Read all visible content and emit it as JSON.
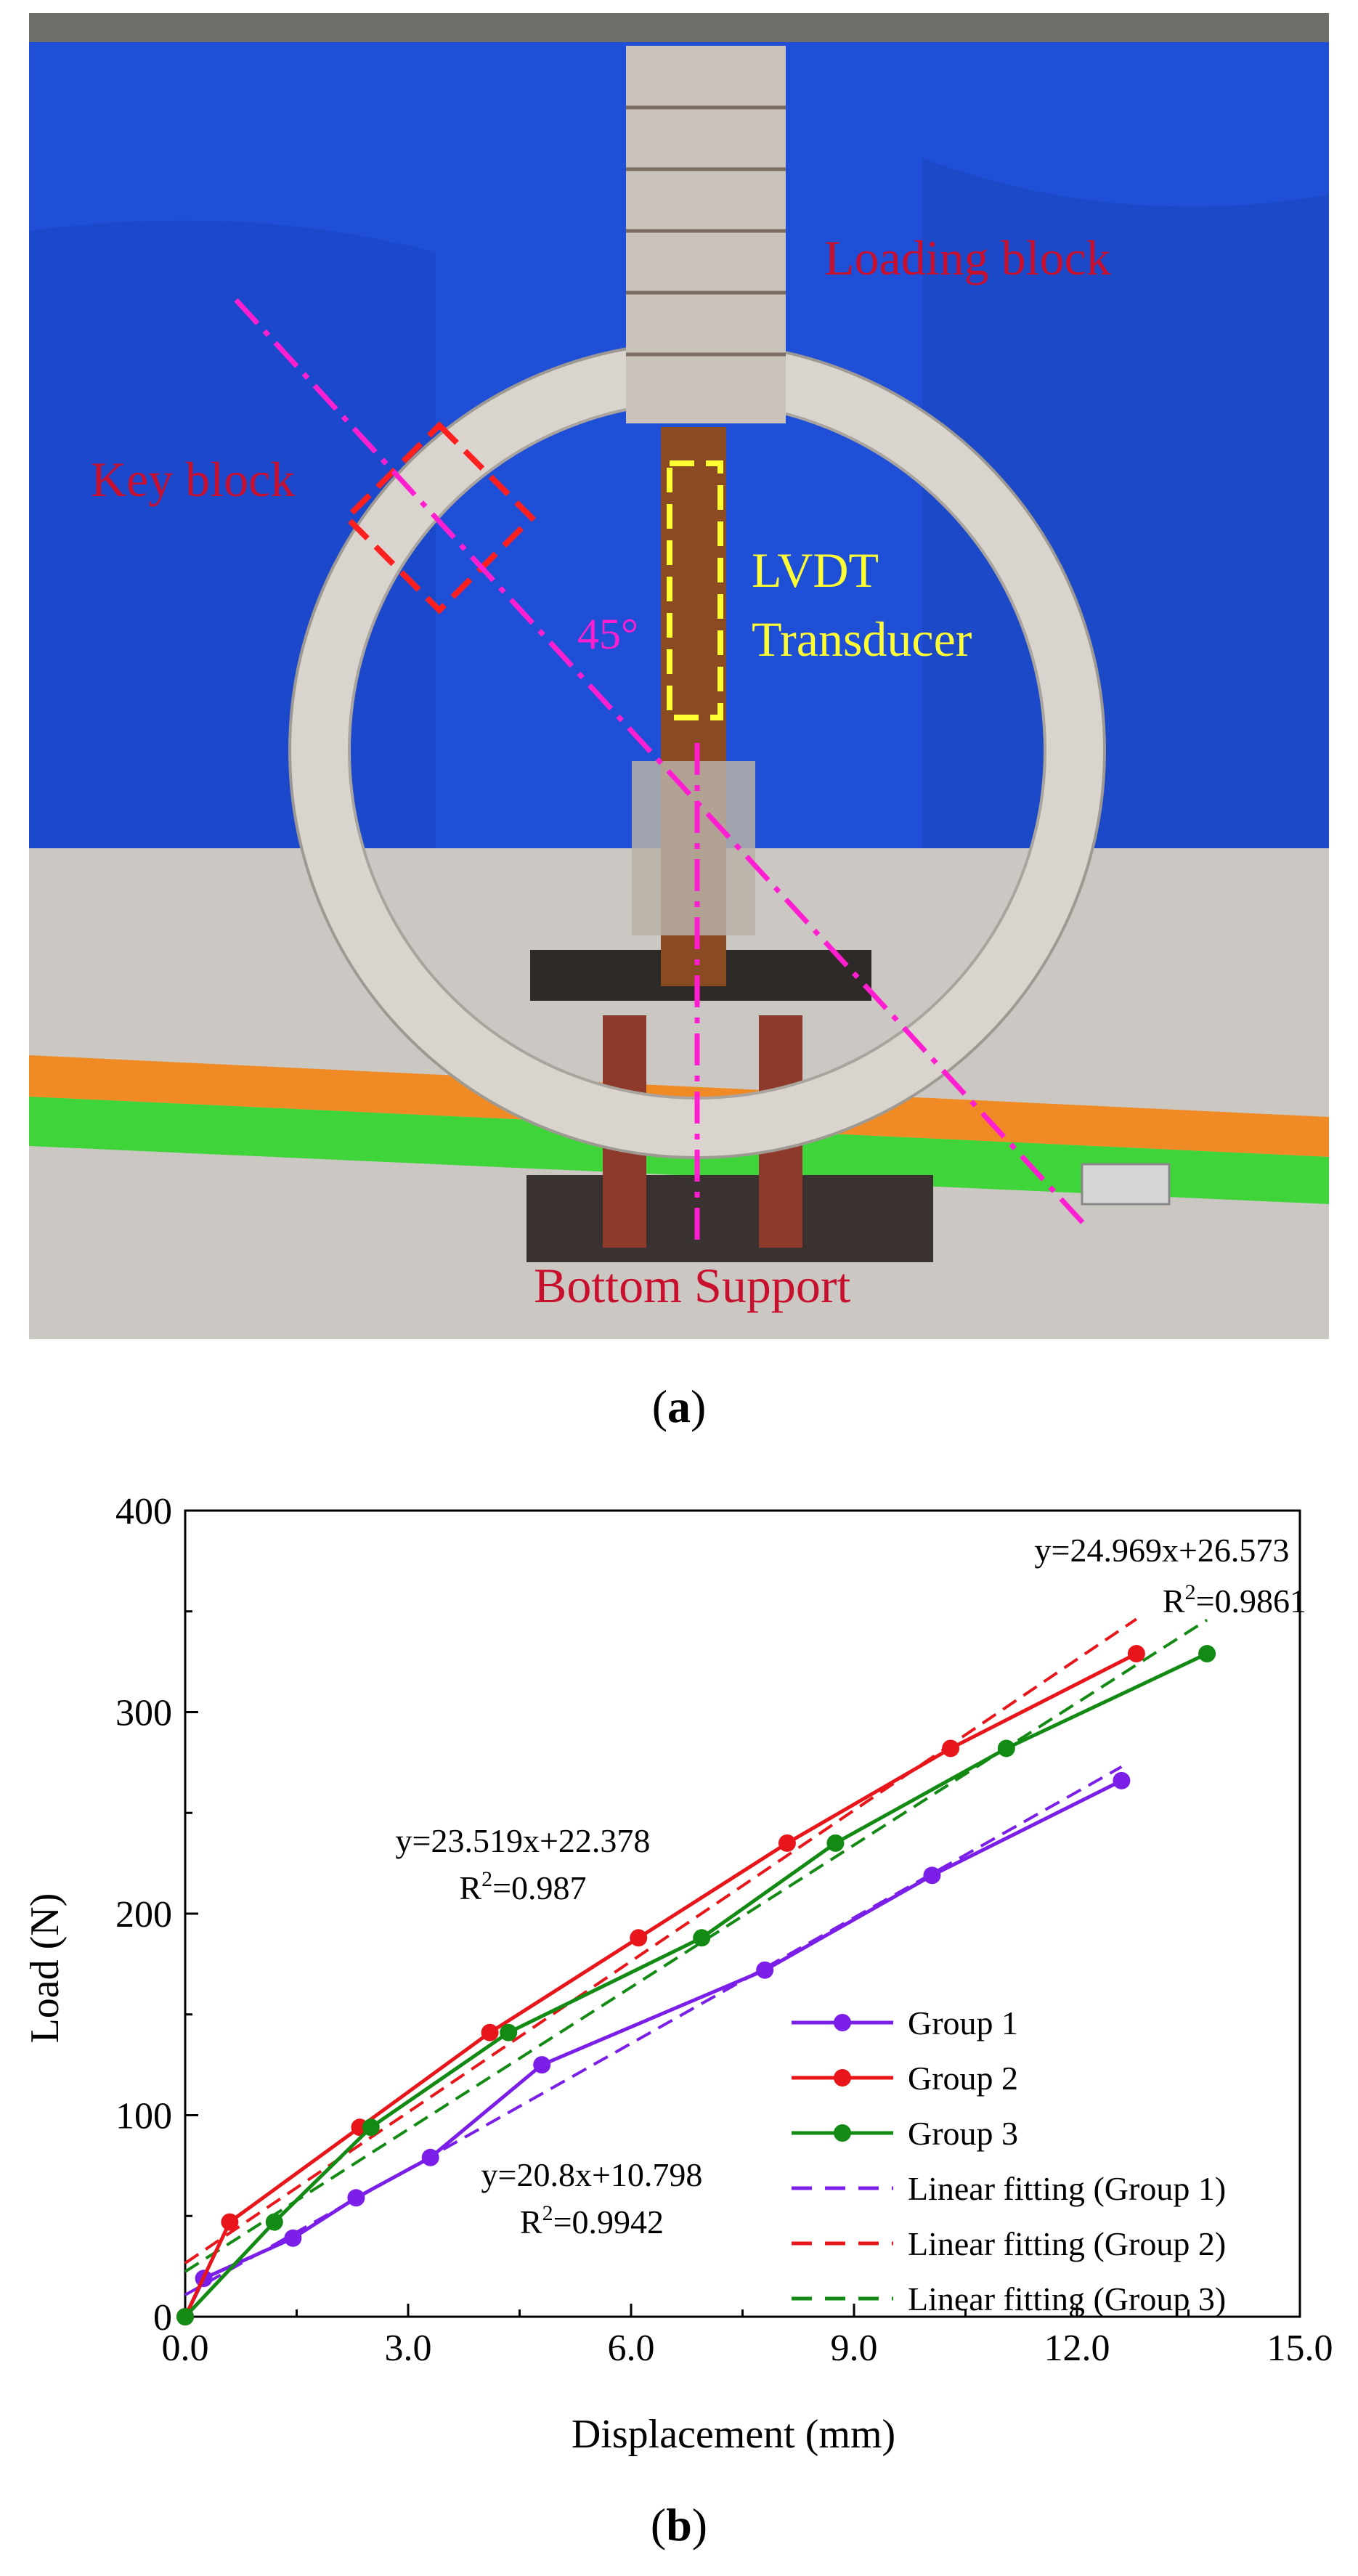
{
  "photo": {
    "labels": {
      "loading_block": "Loading block",
      "key_block": "Key block",
      "lvdt_line1": "LVDT",
      "lvdt_line2": "Transducer",
      "angle": "45°",
      "bottom_support": "Bottom Support"
    },
    "colors": {
      "curtain": "#1f4fd6",
      "floor": "#c9c6c2",
      "orange_stripe": "#f08a24",
      "green_stripe": "#3fd43a",
      "ring": "#d7d3cc",
      "label_red": "#c8102e",
      "label_yellow": "#ffff33",
      "line_magenta": "#ff1fd1"
    }
  },
  "captions": {
    "a": "a",
    "b": "b"
  },
  "chart_data": {
    "type": "line",
    "xlabel": "Displacement (mm)",
    "ylabel": "Load (N)",
    "xlim": [
      0,
      15
    ],
    "ylim": [
      0,
      400
    ],
    "xticks": [
      "0.0",
      "3.0",
      "6.0",
      "9.0",
      "12.0",
      "15.0"
    ],
    "yticks": [
      "0",
      "100",
      "200",
      "300",
      "400"
    ],
    "legend_position": "bottom-right",
    "series": [
      {
        "name": "Group 1",
        "color": "#7b1fe8",
        "x": [
          0.0,
          0.25,
          1.45,
          2.3,
          3.3,
          4.8,
          7.8,
          10.05,
          12.6
        ],
        "y": [
          0,
          19,
          39,
          59,
          79,
          125,
          172,
          219,
          266
        ]
      },
      {
        "name": "Group 2",
        "color": "#e8161a",
        "x": [
          0.0,
          0.6,
          2.35,
          4.1,
          6.1,
          8.1,
          10.3,
          12.8
        ],
        "y": [
          0,
          47,
          94,
          141,
          188,
          235,
          282,
          329
        ]
      },
      {
        "name": "Group 3",
        "color": "#138a13",
        "x": [
          0.0,
          1.2,
          2.5,
          4.35,
          6.95,
          8.75,
          11.05,
          13.75
        ],
        "y": [
          0,
          47,
          94,
          141,
          188,
          235,
          282,
          329
        ]
      }
    ],
    "fits": [
      {
        "name": "Linear fitting (Group 1)",
        "color": "#7b1fe8",
        "slope": 20.8,
        "intercept": 10.798,
        "x": [
          0,
          12.6
        ]
      },
      {
        "name": "Linear fitting (Group 2)",
        "color": "#e8161a",
        "slope": 24.969,
        "intercept": 26.573,
        "x": [
          0,
          12.8
        ]
      },
      {
        "name": "Linear fitting (Group 3)",
        "color": "#138a13",
        "slope": 23.519,
        "intercept": 22.378,
        "x": [
          0,
          13.75
        ]
      }
    ],
    "annotations": [
      {
        "eq": "y=24.969x+26.573",
        "r2_label": "R",
        "r2_sup": "2",
        "r2_value": "=0.9861"
      },
      {
        "eq": "y=23.519x+22.378",
        "r2_label": "R",
        "r2_sup": "2",
        "r2_value": "=0.987"
      },
      {
        "eq": "y=20.8x+10.798",
        "r2_label": "R",
        "r2_sup": "2",
        "r2_value": "=0.9942"
      }
    ]
  }
}
